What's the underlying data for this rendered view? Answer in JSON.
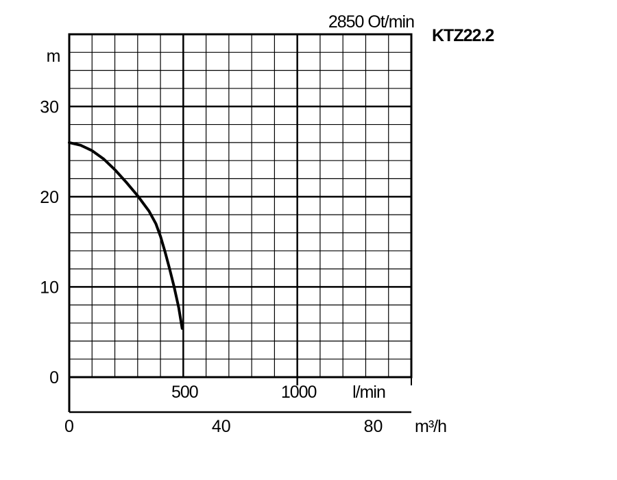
{
  "chart_data": {
    "type": "line",
    "title": "KTZ22.2",
    "subtitle": "2850 Ot/min",
    "ylabel": "m",
    "ylim": [
      0,
      38
    ],
    "yticks": [
      0,
      10,
      20,
      30
    ],
    "xlabel_primary": "l/min",
    "xlim_primary": [
      0,
      1500
    ],
    "xticks_primary": [
      500,
      1000
    ],
    "xlabel_secondary": "m³/h",
    "xticks_secondary": [
      0,
      40,
      80
    ],
    "grid": true,
    "series": [
      {
        "x": [
          0,
          50,
          100,
          150,
          200,
          250,
          300,
          350,
          380,
          400,
          420,
          440,
          460,
          480,
          495
        ],
        "y": [
          26,
          25.7,
          25.1,
          24.2,
          23,
          21.6,
          20.1,
          18.4,
          17,
          15.6,
          13.9,
          12,
          10,
          7.7,
          5.4
        ]
      }
    ]
  }
}
